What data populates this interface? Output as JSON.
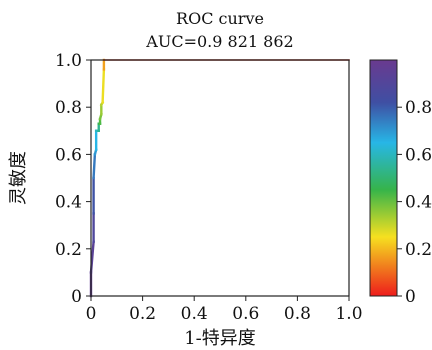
{
  "chart_data": {
    "type": "line",
    "title": "ROC curve",
    "subtitle": "AUC=0.9 821 862",
    "xlabel": "1-特异度",
    "ylabel": "灵敏度",
    "xlim": [
      0,
      1
    ],
    "ylim": [
      0,
      1
    ],
    "x_ticks": [
      "0",
      "0.2",
      "0.4",
      "0.6",
      "0.8",
      "1.0"
    ],
    "y_ticks": [
      "0",
      "0.2",
      "0.4",
      "0.6",
      "0.8",
      "1.0"
    ],
    "grid": false,
    "colorbar": {
      "ticks": [
        "0",
        "0.2",
        "0.4",
        "0.6",
        "0.8"
      ],
      "range": [
        0,
        1
      ],
      "colormap": [
        "#ee1c1c",
        "#f07a1d",
        "#f6e020",
        "#36b44a",
        "#27b6e6",
        "#3f4fa3",
        "#6a3a8f"
      ]
    },
    "series": [
      {
        "x": [
          0.0,
          0.0,
          0.01,
          0.01,
          0.01,
          0.015,
          0.02,
          0.02,
          0.03,
          0.03,
          0.035,
          0.035,
          0.04,
          0.04,
          0.045,
          0.05,
          0.05,
          1.0
        ],
        "y": [
          0.0,
          0.1,
          0.23,
          0.35,
          0.5,
          0.6,
          0.62,
          0.7,
          0.7,
          0.73,
          0.73,
          0.75,
          0.77,
          0.81,
          0.82,
          0.96,
          1.0,
          1.0
        ],
        "threshold": [
          1.0,
          0.95,
          0.92,
          0.85,
          0.78,
          0.72,
          0.68,
          0.62,
          0.58,
          0.5,
          0.45,
          0.4,
          0.36,
          0.33,
          0.3,
          0.22,
          0.12,
          0.0
        ]
      }
    ],
    "line_color": "#b52a1c"
  }
}
